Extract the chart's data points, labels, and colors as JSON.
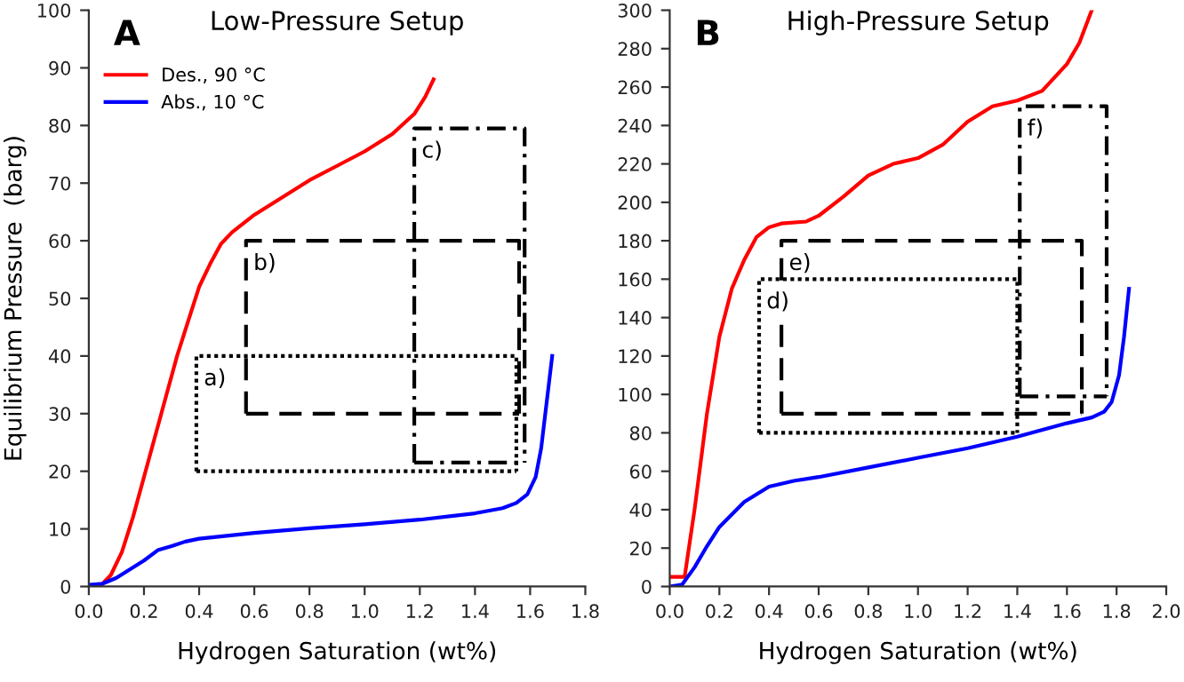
{
  "chart_data": [
    {
      "type": "line",
      "title": "Low-Pressure Setup",
      "xlabel": "Hydrogen Saturation (wt%)",
      "ylabel": "Equilibrium Pressure  (barg)",
      "annotations": [
        "A",
        "a)",
        "b)",
        "c)"
      ],
      "xlim": [
        0,
        1.8
      ],
      "xticks": [
        {
          "value": 0,
          "label": "0.0"
        },
        0.2,
        0.4,
        0.6,
        0.8,
        {
          "value": 1,
          "label": "1.0"
        },
        1.2,
        1.4,
        1.6,
        1.8
      ],
      "ylim": [
        0,
        100
      ],
      "yticks": [
        0,
        10,
        20,
        30,
        40,
        50,
        60,
        70,
        80,
        90,
        100
      ],
      "grid": false,
      "legend": "top left",
      "marker": "none",
      "series": [
        {
          "name": "Des., 90 °C",
          "color": "#ff0000",
          "x": [
            0.04,
            0.08,
            0.12,
            0.16,
            0.2,
            0.24,
            0.28,
            0.32,
            0.36,
            0.4,
            0.44,
            0.48,
            0.52,
            0.6,
            0.7,
            0.8,
            0.9,
            1.0,
            1.1,
            1.18,
            1.22,
            1.25
          ],
          "values": [
            0,
            2,
            6,
            12,
            19,
            26,
            33,
            40,
            46,
            52,
            56,
            59.5,
            61.5,
            64.5,
            67.5,
            70.5,
            73,
            75.5,
            78.5,
            82,
            85,
            88
          ]
        },
        {
          "name": "Abs., 10 °C",
          "color": "#0000ff",
          "x": [
            0,
            0.05,
            0.1,
            0.15,
            0.2,
            0.25,
            0.3,
            0.35,
            0.4,
            0.5,
            0.6,
            0.8,
            1.0,
            1.2,
            1.4,
            1.5,
            1.55,
            1.59,
            1.62,
            1.64,
            1.66,
            1.68
          ],
          "values": [
            0.3,
            0.5,
            1.5,
            3,
            4.5,
            6.3,
            7,
            7.8,
            8.3,
            8.8,
            9.3,
            10.1,
            10.8,
            11.6,
            12.7,
            13.6,
            14.5,
            16,
            19,
            24,
            32,
            40
          ]
        },
        {
          "color": "#000000",
          "line_style": "dotted",
          "x": [
            0.39,
            0.39,
            1.55,
            1.55
          ],
          "values": [
            20,
            40,
            40,
            20
          ]
        },
        {
          "color": "#000000",
          "line_style": "dotted",
          "x": [
            0.39,
            1.55
          ],
          "values": [
            20,
            20
          ]
        },
        {
          "color": "#000000",
          "line_style": "dashed",
          "x": [
            0.57,
            0.57,
            1.56,
            1.56
          ],
          "values": [
            30,
            60,
            60,
            30
          ]
        },
        {
          "color": "#000000",
          "line_style": "dashed",
          "x": [
            0.57,
            1.56
          ],
          "values": [
            30,
            30
          ]
        },
        {
          "color": "#000000",
          "line_style": "dashdot",
          "x": [
            1.18,
            1.18,
            1.58,
            1.58
          ],
          "values": [
            21.5,
            79.5,
            79.5,
            21.5
          ]
        },
        {
          "color": "#000000",
          "line_style": "dashdot",
          "x": [
            1.18,
            1.58
          ],
          "values": [
            21.5,
            21.5
          ]
        }
      ]
    },
    {
      "type": "line",
      "title": "High-Pressure Setup",
      "xlabel": "Hydrogen Saturation (wt%)",
      "annotations": [
        "B",
        "d)",
        "e)",
        "f)"
      ],
      "xlim": [
        0,
        2.0
      ],
      "xticks": [
        {
          "value": 0,
          "label": "0.0"
        },
        0.2,
        0.4,
        0.6,
        0.8,
        {
          "value": 1,
          "label": "1.0"
        },
        1.2,
        1.4,
        1.6,
        1.8,
        {
          "value": 2,
          "label": "2.0"
        }
      ],
      "ylim": [
        0,
        300
      ],
      "yticks": [
        0,
        20,
        40,
        60,
        80,
        100,
        120,
        140,
        160,
        180,
        200,
        220,
        240,
        260,
        280,
        300
      ],
      "grid": false,
      "marker": "none",
      "series": [
        {
          "color": "#ff0000",
          "x": [
            0,
            0.06,
            0.1,
            0.15,
            0.2,
            0.25,
            0.3,
            0.35,
            0.4,
            0.45,
            0.55,
            0.6,
            0.7,
            0.8,
            0.9,
            1.0,
            1.1,
            1.2,
            1.3,
            1.4,
            1.5,
            1.6,
            1.65,
            1.7
          ],
          "values": [
            5,
            5,
            40,
            90,
            130,
            155,
            170,
            182,
            187,
            189,
            190,
            193,
            203,
            214,
            220,
            223,
            230,
            242,
            250,
            253,
            258,
            272,
            283,
            300
          ]
        },
        {
          "color": "#0000ff",
          "x": [
            0,
            0.05,
            0.1,
            0.15,
            0.2,
            0.3,
            0.4,
            0.5,
            0.6,
            0.8,
            1.0,
            1.2,
            1.4,
            1.6,
            1.7,
            1.75,
            1.78,
            1.81,
            1.83,
            1.85
          ],
          "values": [
            0,
            1,
            10,
            21,
            31,
            44,
            52,
            55,
            57,
            62,
            67,
            72,
            78,
            85,
            88,
            91,
            96,
            110,
            130,
            155
          ]
        },
        {
          "color": "#000000",
          "line_style": "dotted",
          "x": [
            0.36,
            0.36,
            1.4,
            1.4
          ],
          "values": [
            80,
            160,
            160,
            80
          ]
        },
        {
          "color": "#000000",
          "line_style": "dotted",
          "x": [
            0.36,
            1.4
          ],
          "values": [
            80,
            80
          ]
        },
        {
          "color": "#000000",
          "line_style": "dashed",
          "x": [
            0.45,
            0.45,
            1.66,
            1.66
          ],
          "values": [
            90,
            180,
            180,
            90
          ]
        },
        {
          "color": "#000000",
          "line_style": "dashed",
          "x": [
            0.45,
            1.66
          ],
          "values": [
            90,
            90
          ]
        },
        {
          "color": "#000000",
          "line_style": "dashdot",
          "x": [
            1.41,
            1.41,
            1.76,
            1.76
          ],
          "values": [
            99,
            250,
            250,
            99
          ]
        },
        {
          "color": "#000000",
          "line_style": "dashdot",
          "x": [
            1.41,
            1.76
          ],
          "values": [
            99,
            99
          ]
        }
      ]
    }
  ]
}
